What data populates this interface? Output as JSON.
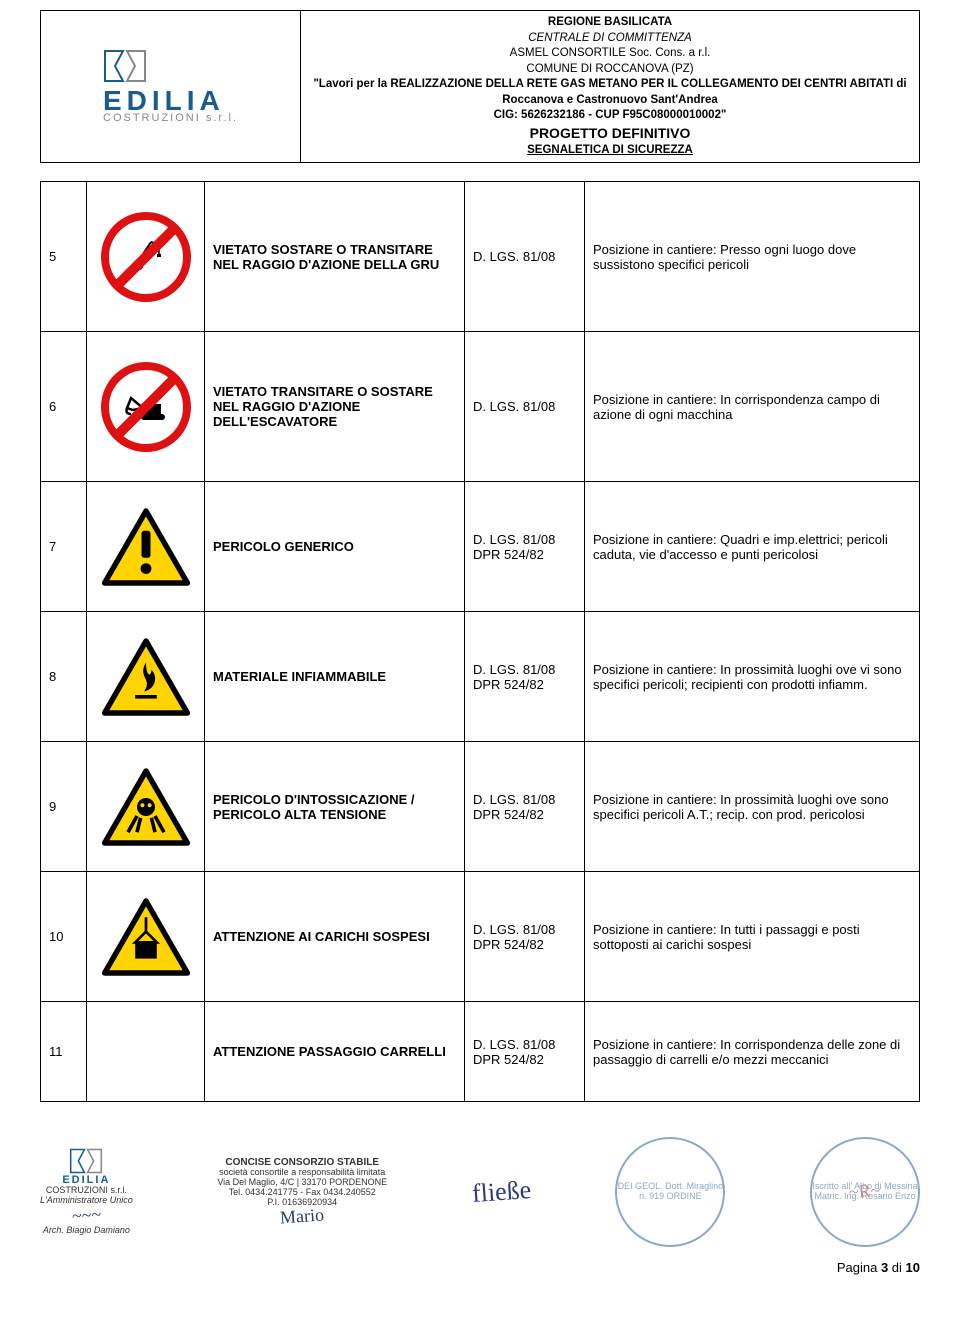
{
  "header": {
    "logo_main": "EDILIA",
    "logo_sub": "COSTRUZIONI s.r.l.",
    "line1": "REGIONE BASILICATA",
    "line2": "CENTRALE DI COMMITTENZA",
    "line3": "ASMEL CONSORTILE Soc. Cons. a r.l.",
    "line4": "COMUNE DI ROCCANOVA (PZ)",
    "line5": "\"Lavori per la REALIZZAZIONE DELLA RETE GAS METANO PER IL COLLEGAMENTO DEI CENTRI ABITATI di",
    "line6": "Roccanova e Castronuovo Sant'Andrea",
    "line7": "CIG: 5626232186 - CUP F95C08000010002\"",
    "line8": "PROGETTO DEFINITIVO",
    "line9": "SEGNALETICA DI SICUREZZA"
  },
  "rows": [
    {
      "num": "5",
      "icon": "prohibit-crane",
      "desc": "VIETATO SOSTARE O TRANSITARE NEL RAGGIO D'AZIONE DELLA GRU",
      "ref": "D. LGS. 81/08",
      "pos": "Posizione in cantiere: Presso ogni luogo dove sussistono specifici pericoli"
    },
    {
      "num": "6",
      "icon": "prohibit-excavator",
      "desc": "VIETATO TRANSITARE O SOSTARE NEL RAGGIO D'AZIONE DELL'ESCAVATORE",
      "ref": "D. LGS. 81/08",
      "pos": "Posizione in cantiere: In corrispondenza campo di azione di ogni macchina"
    },
    {
      "num": "7",
      "icon": "warn-generic",
      "desc": "PERICOLO GENERICO",
      "ref": "D. LGS. 81/08 DPR 524/82",
      "pos": "Posizione in cantiere: Quadri e imp.elettrici; pericoli caduta, vie d'accesso e punti pericolosi"
    },
    {
      "num": "8",
      "icon": "warn-flammable",
      "desc": "MATERIALE INFIAMMABILE",
      "ref": "D. LGS. 81/08 DPR 524/82",
      "pos": "Posizione in cantiere: In prossimità luoghi ove vi sono specifici pericoli; recipienti con prodotti infiamm."
    },
    {
      "num": "9",
      "icon": "warn-toxic",
      "desc": "PERICOLO D'INTOSSICAZIONE / PERICOLO ALTA TENSIONE",
      "ref": "D. LGS. 81/08 DPR 524/82",
      "pos": "Posizione in cantiere: In prossimità luoghi ove sono specifici pericoli A.T.; recip. con prod. pericolosi"
    },
    {
      "num": "10",
      "icon": "warn-load",
      "desc": "ATTENZIONE AI CARICHI SOSPESI",
      "ref": "D. LGS. 81/08 DPR 524/82",
      "pos": "Posizione in cantiere: In tutti i passaggi e posti sottoposti ai carichi sospesi"
    },
    {
      "num": "11",
      "icon": "none",
      "desc": "ATTENZIONE PASSAGGIO CARRELLI",
      "ref": "D. LGS. 81/08 DPR 524/82",
      "pos": "Posizione in cantiere: In corrispondenza delle zone di passaggio di carrelli e/o mezzi meccanici"
    }
  ],
  "footer": {
    "logo_main": "EDILIA",
    "logo_sub": "COSTRUZIONI s.r.l.",
    "amm": "L'Amministratore Unico",
    "arch": "Arch. Biagio Damiano",
    "concise1": "CONCISE CONSORZIO STABILE",
    "concise2": "società consortile a responsabilità limitata",
    "concise3": "Via Del Maglio, 4/C | 33170 PORDENONE",
    "concise4": "Tel. 0434.241775 - Fax 0434.240552",
    "concise5": "P.I. 01636920934",
    "stamp1": "DEI GEOL. Dott. Miraglino n. 919 ORDINE",
    "stamp2": "Iscritto all' Albo di Messina Matric. Ing. Rosario Enzo",
    "page": "Pagina 3 di 10"
  },
  "colors": {
    "red": "#d11",
    "yellow": "#ffd400",
    "black": "#000000",
    "blue": "#1b5c8f"
  }
}
